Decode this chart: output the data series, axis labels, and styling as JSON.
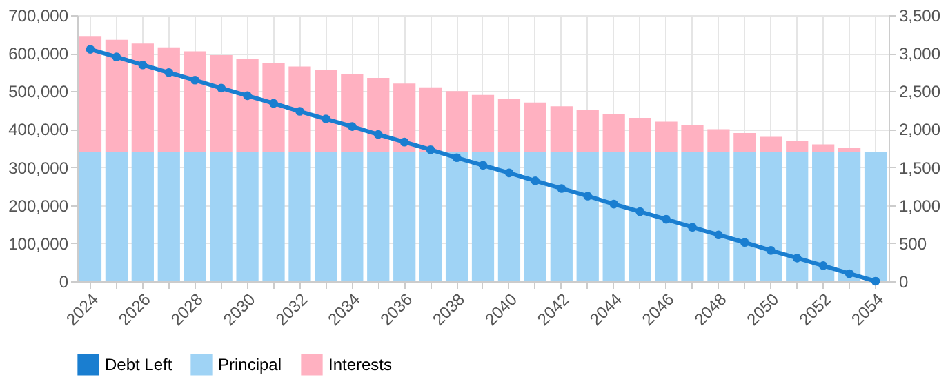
{
  "chart_data": {
    "type": "bar",
    "categories": [
      "2024",
      null,
      "2026",
      null,
      "2028",
      null,
      "2030",
      null,
      "2032",
      null,
      "2034",
      null,
      "2036",
      null,
      "2038",
      null,
      "2040",
      null,
      "2042",
      null,
      "2044",
      null,
      "2046",
      null,
      "2048",
      null,
      "2050",
      null,
      "2052",
      null,
      "2054"
    ],
    "series": [
      {
        "name": "Debt Left",
        "type": "line",
        "axis": "y",
        "color": "#1a7ed0",
        "values": [
          610000,
          590000,
          569000,
          549000,
          529000,
          508000,
          488000,
          468000,
          447000,
          427000,
          407000,
          386000,
          366000,
          346000,
          325000,
          305000,
          285000,
          264000,
          244000,
          224000,
          203000,
          183000,
          163000,
          142000,
          122000,
          102000,
          81000,
          61000,
          41000,
          20000,
          0
        ]
      },
      {
        "name": "Principal",
        "axis": "y2",
        "color": "#9fd3f5",
        "values": [
          1700,
          1700,
          1700,
          1700,
          1700,
          1700,
          1700,
          1700,
          1700,
          1700,
          1700,
          1700,
          1700,
          1700,
          1700,
          1700,
          1700,
          1700,
          1700,
          1700,
          1700,
          1700,
          1700,
          1700,
          1700,
          1700,
          1700,
          1700,
          1700,
          1700,
          1700
        ]
      },
      {
        "name": "Interests",
        "axis": "y2",
        "color": "#ffb1c1",
        "values": [
          1525,
          1475,
          1425,
          1375,
          1325,
          1275,
          1225,
          1175,
          1125,
          1075,
          1025,
          975,
          900,
          850,
          800,
          750,
          700,
          650,
          600,
          550,
          500,
          450,
          400,
          350,
          300,
          250,
          200,
          150,
          100,
          50,
          0
        ]
      }
    ],
    "stacked": true,
    "ylim": [
      0,
      700000
    ],
    "yticks": [
      0,
      {
        "value": 100000,
        "label": "100,000"
      },
      {
        "value": 200000,
        "label": "200,000"
      },
      {
        "value": 300000,
        "label": "300,000"
      },
      {
        "value": 400000,
        "label": "400,000"
      },
      {
        "value": 500000,
        "label": "500,000"
      },
      {
        "value": 600000,
        "label": "600,000"
      },
      {
        "value": 700000,
        "label": "700,000"
      }
    ],
    "y2lim": [
      0,
      3500
    ],
    "y2ticks": [
      0,
      500,
      {
        "value": 1000,
        "label": "1,000"
      },
      {
        "value": 1500,
        "label": "1,500"
      },
      {
        "value": 2000,
        "label": "2,000"
      },
      {
        "value": 2500,
        "label": "2,500"
      },
      {
        "value": 3000,
        "label": "3,000"
      },
      {
        "value": 3500,
        "label": "3,500"
      }
    ],
    "grid": true,
    "legend": "bottom",
    "marker": "circle"
  }
}
